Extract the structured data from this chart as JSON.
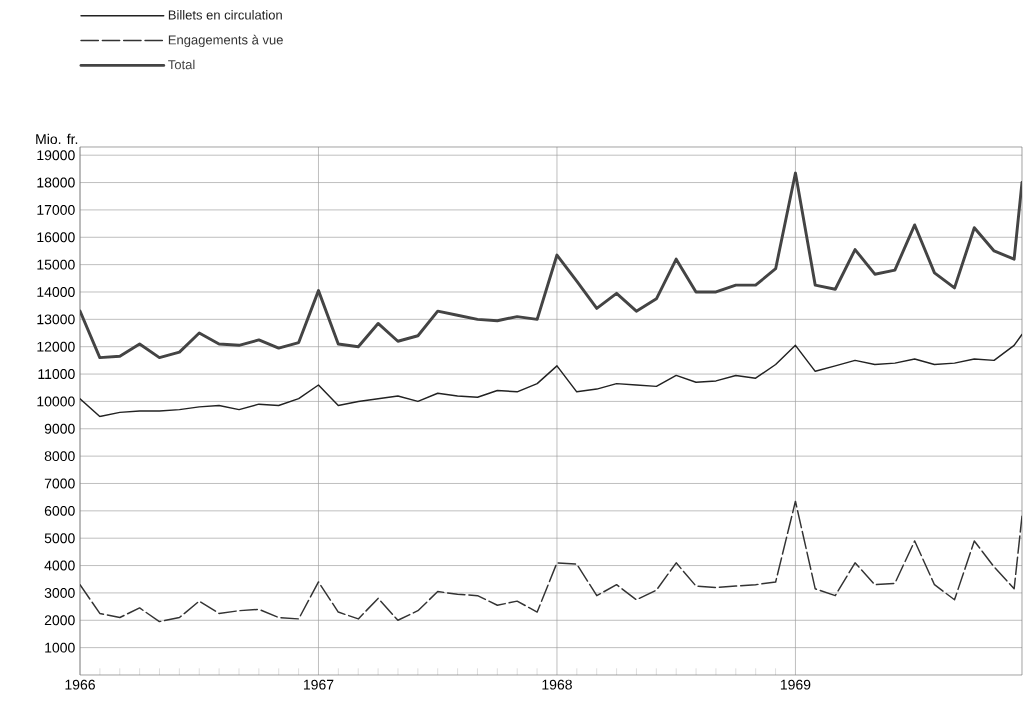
{
  "chart_data": {
    "type": "line",
    "ylabel": "Mio. fr.",
    "x": [
      1966,
      1966.083,
      1966.167,
      1966.25,
      1966.333,
      1966.417,
      1966.5,
      1966.583,
      1966.667,
      1966.75,
      1966.833,
      1966.917,
      1967,
      1967.083,
      1967.167,
      1967.25,
      1967.333,
      1967.417,
      1967.5,
      1967.583,
      1967.667,
      1967.75,
      1967.833,
      1967.917,
      1968,
      1968.083,
      1968.167,
      1968.25,
      1968.333,
      1968.417,
      1968.5,
      1968.583,
      1968.667,
      1968.75,
      1968.833,
      1968.917,
      1969,
      1969.083,
      1969.167,
      1969.25,
      1969.333,
      1969.417,
      1969.5,
      1969.583,
      1969.667,
      1969.75,
      1969.833,
      1969.917,
      1969.95
    ],
    "series": [
      {
        "name": "Billets en circulation",
        "color": "#222222",
        "line_style": "solid",
        "values": [
          10100,
          9450,
          9600,
          9650,
          9650,
          9700,
          9800,
          9850,
          9700,
          9900,
          9850,
          10100,
          10600,
          9850,
          10000,
          10100,
          10200,
          10000,
          10300,
          10200,
          10150,
          10400,
          10350,
          10650,
          11300,
          10350,
          10450,
          10650,
          10600,
          10550,
          10950,
          10700,
          10750,
          10950,
          10850,
          11350,
          12050,
          11100,
          11300,
          11500,
          11350,
          11400,
          11550,
          11350,
          11400,
          11550,
          11500,
          12050,
          12450
        ]
      },
      {
        "name": "Engagements à vue",
        "color": "#333333",
        "line_style": "dashed",
        "values": [
          3300,
          2250,
          2100,
          2450,
          1950,
          2100,
          2700,
          2250,
          2350,
          2400,
          2100,
          2050,
          3400,
          2300,
          2050,
          2800,
          2000,
          2350,
          3050,
          2950,
          2900,
          2550,
          2700,
          2300,
          4100,
          4050,
          2900,
          3300,
          2750,
          3100,
          4100,
          3250,
          3200,
          3250,
          3300,
          3400,
          6350,
          3150,
          2900,
          4100,
          3300,
          3350,
          4900,
          3300,
          2750,
          4900,
          3950,
          3150,
          5800
        ]
      },
      {
        "name": "Total",
        "color": "#444444",
        "line_style": "solid",
        "values": [
          13300,
          11600,
          11650,
          12100,
          11600,
          11800,
          12500,
          12100,
          12050,
          12250,
          11950,
          12150,
          14050,
          12100,
          12000,
          12850,
          12200,
          12400,
          13300,
          13150,
          13000,
          12950,
          13100,
          13000,
          15350,
          14400,
          13400,
          13950,
          13300,
          13750,
          15200,
          14000,
          14000,
          14250,
          14250,
          14850,
          18350,
          14250,
          14100,
          15550,
          14650,
          14800,
          16450,
          14700,
          14150,
          16350,
          15500,
          15200,
          18000
        ]
      }
    ],
    "xlim": [
      1966,
      1969.95
    ],
    "xticks": [
      1966,
      1967,
      1968,
      1969
    ],
    "ylim": [
      0,
      19300
    ],
    "yticks": [
      1000,
      2000,
      3000,
      4000,
      5000,
      6000,
      7000,
      8000,
      9000,
      10000,
      11000,
      12000,
      13000,
      14000,
      15000,
      16000,
      17000,
      18000,
      19000
    ],
    "grid": true,
    "legend": "top left",
    "marker": "none"
  }
}
